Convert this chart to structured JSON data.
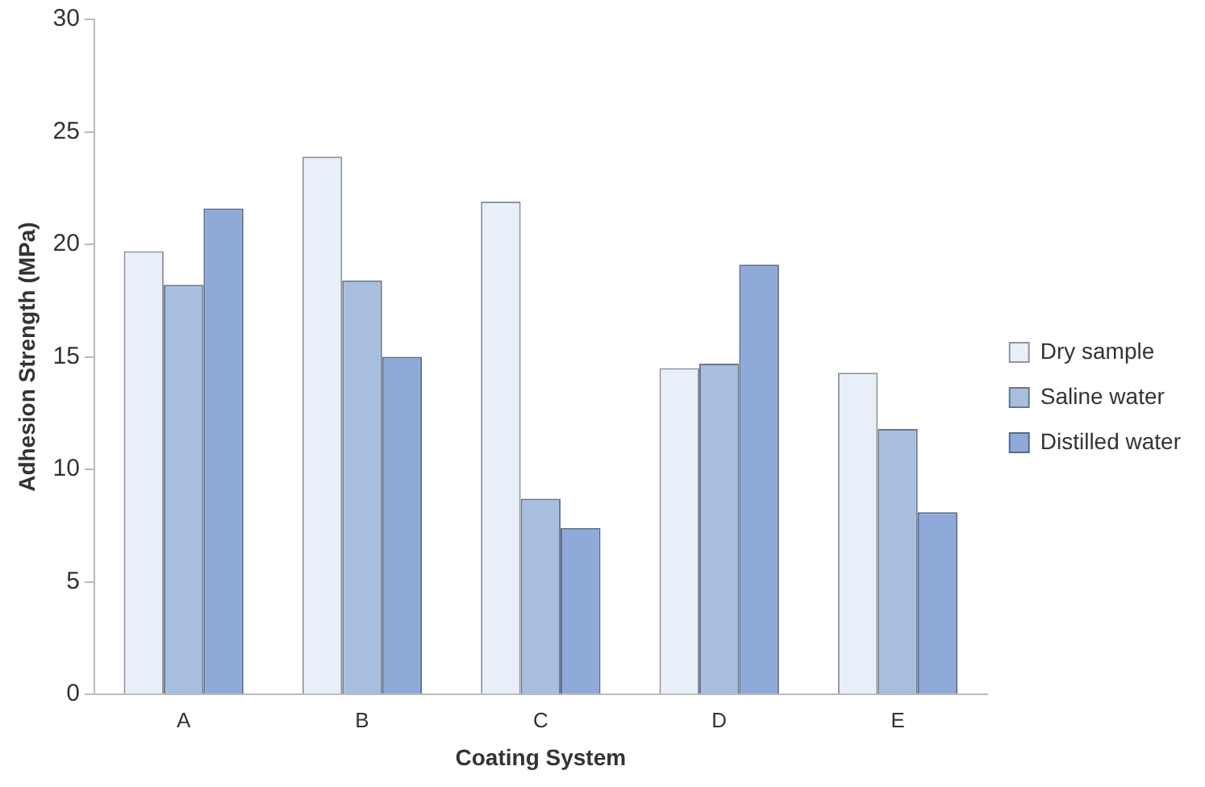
{
  "chart_data": {
    "type": "bar",
    "xlabel": "Coating System",
    "ylabel": "Adhesion Strength (MPa)",
    "categories": [
      "A",
      "B",
      "C",
      "D",
      "E"
    ],
    "series": [
      {
        "name": "Dry sample",
        "color": "#e9eff9",
        "values": [
          19.7,
          23.9,
          21.9,
          14.5,
          14.3
        ]
      },
      {
        "name": "Saline water",
        "color": "#a7bedf",
        "values": [
          18.2,
          18.4,
          8.7,
          14.7,
          11.8
        ]
      },
      {
        "name": "Distilled water",
        "color": "#8faad8",
        "values": [
          21.6,
          15.0,
          7.4,
          19.1,
          8.1
        ]
      }
    ],
    "ylim": [
      0,
      30
    ],
    "yticks": [
      0,
      5,
      10,
      15,
      20,
      25,
      30
    ],
    "grid": false,
    "legend": "right"
  }
}
